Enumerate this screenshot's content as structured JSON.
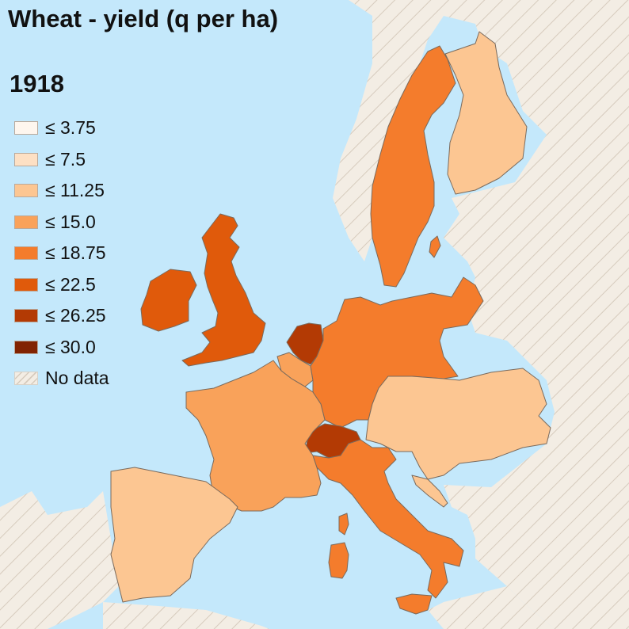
{
  "title": "Wheat - yield (q per ha)",
  "year": "1918",
  "legend": [
    {
      "label": "≤ 3.75",
      "color": "#fef6ee"
    },
    {
      "label": "≤ 7.5",
      "color": "#fde0c4"
    },
    {
      "label": "≤ 11.25",
      "color": "#fcc692"
    },
    {
      "label": "≤ 15.0",
      "color": "#f9a25a"
    },
    {
      "label": "≤ 18.75",
      "color": "#f47c2c"
    },
    {
      "label": "≤ 22.5",
      "color": "#e05a0b"
    },
    {
      "label": "≤ 26.25",
      "color": "#b33a04"
    },
    {
      "label": "≤ 30.0",
      "color": "#812302"
    },
    {
      "label": "No data",
      "color": "hatch"
    }
  ],
  "colors": {
    "sea": "#c4e8fb",
    "nodata_fill": "#f3ede4",
    "nodata_hatch": "#d6cbbd",
    "border": "#7a6a5c"
  }
}
